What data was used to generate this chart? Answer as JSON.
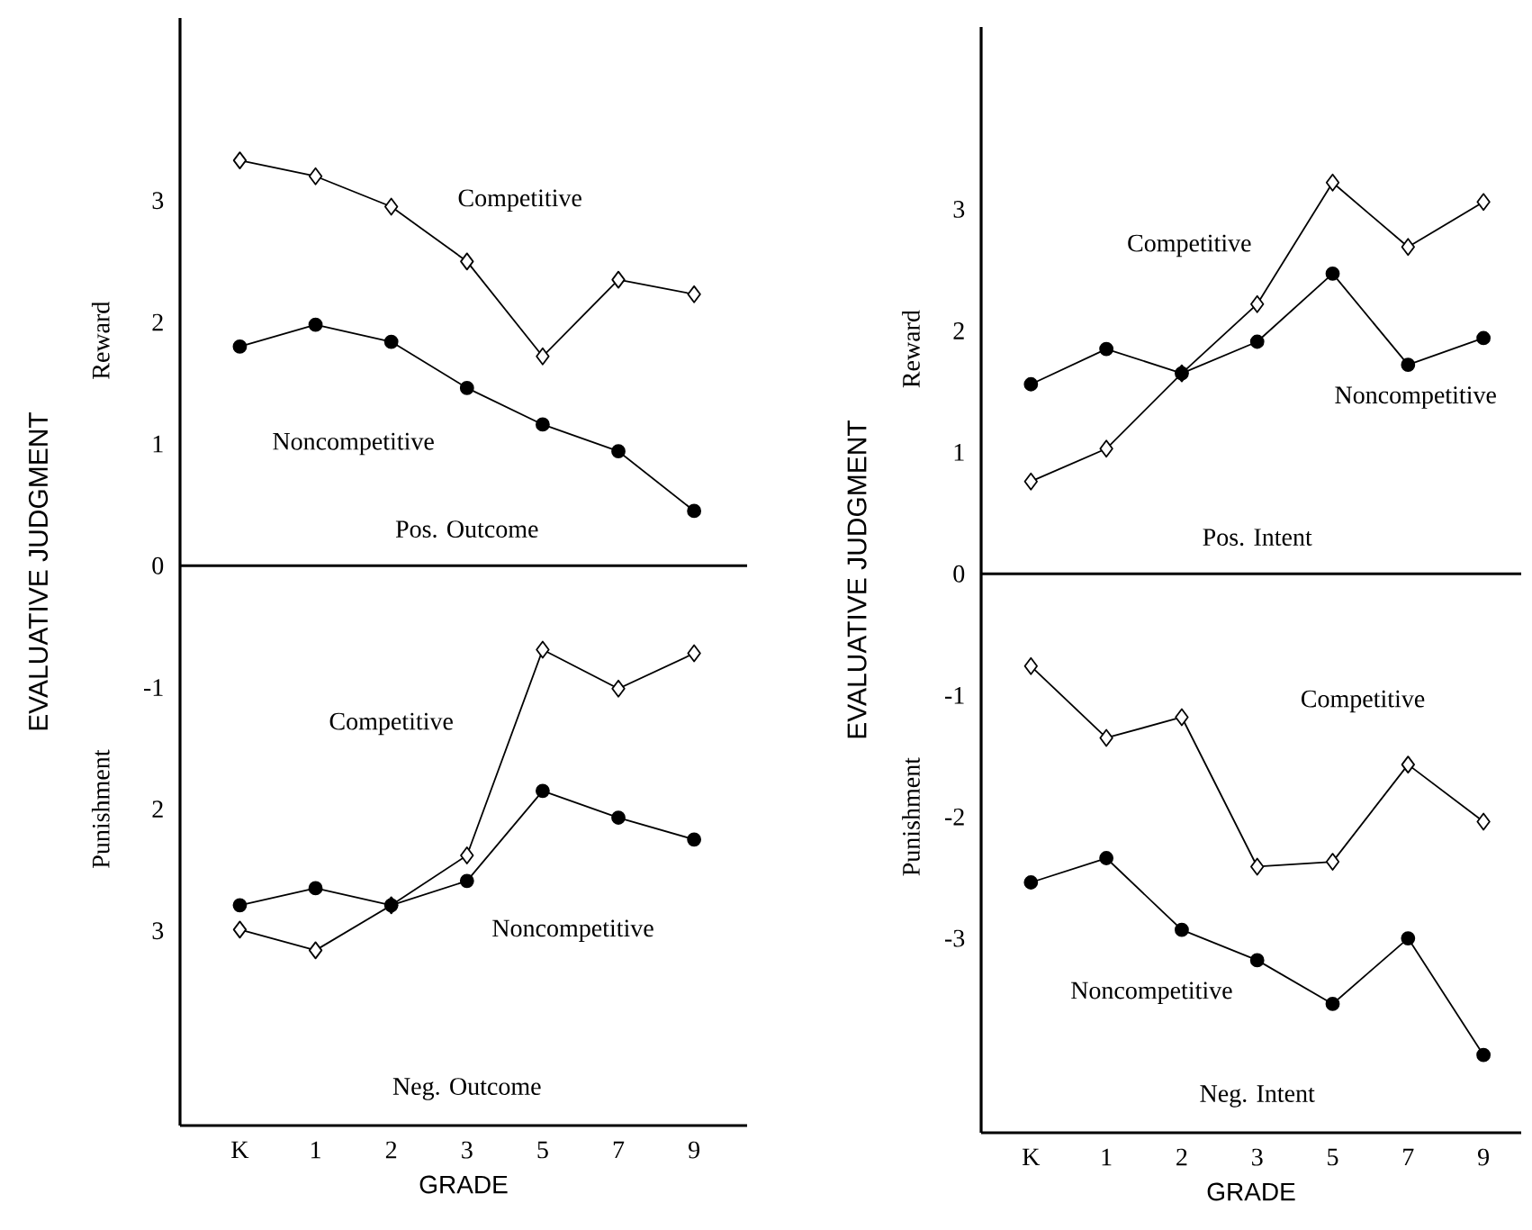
{
  "chart_data": [
    {
      "type": "line",
      "ylabel": "EVALUATIVE JUDGMENT",
      "xlabel": "GRADE",
      "categories": [
        "K",
        "1",
        "2",
        "3",
        "5",
        "7",
        "9"
      ],
      "series": [
        {
          "name": "Competitive",
          "color": "#000000",
          "marker": "diamond",
          "values": [
            3.33,
            3.2,
            2.95,
            2.5,
            1.72,
            2.35,
            2.23
          ]
        },
        {
          "name": "Noncompetitive",
          "color": "#000000",
          "marker": "circle",
          "values": [
            1.8,
            1.98,
            1.84,
            1.46,
            1.16,
            0.94,
            0.45
          ]
        },
        {
          "name": "Competitive",
          "color": "#000000",
          "marker": "diamond",
          "values": [
            -2.99,
            -3.16,
            -2.79,
            -2.38,
            -0.69,
            -1.01,
            -0.72
          ]
        },
        {
          "name": "Noncompetitive",
          "color": "#000000",
          "marker": "circle",
          "values": [
            -2.79,
            -2.65,
            -2.79,
            -2.59,
            -1.85,
            -2.07,
            -2.25
          ]
        }
      ],
      "ylim": [
        -4.6,
        4.5
      ],
      "yticks": [
        3,
        2,
        1,
        0,
        -1,
        {
          "value": -2,
          "label": "2"
        },
        {
          "value": -3,
          "label": "3"
        }
      ],
      "ref_lines": [
        {
          "axis": "y",
          "value": 0
        }
      ],
      "annotations": [
        "Reward",
        "Punishment",
        "Pos. Outcome",
        "Neg. Outcome"
      ]
    },
    {
      "type": "line",
      "ylabel": "EVALUATIVE JUDGMENT",
      "xlabel": "GRADE",
      "categories": [
        "K",
        "1",
        "2",
        "3",
        "5",
        "7",
        "9"
      ],
      "series": [
        {
          "name": "Competitive",
          "color": "#000000",
          "marker": "diamond",
          "values": [
            0.76,
            1.03,
            1.65,
            2.22,
            3.22,
            2.69,
            3.06
          ]
        },
        {
          "name": "Noncompetitive",
          "color": "#000000",
          "marker": "circle",
          "values": [
            1.56,
            1.85,
            1.65,
            1.91,
            2.47,
            1.72,
            1.94
          ]
        },
        {
          "name": "Competitive",
          "color": "#000000",
          "marker": "diamond",
          "values": [
            -0.76,
            -1.35,
            -1.18,
            -2.41,
            -2.37,
            -1.57,
            -2.04
          ]
        },
        {
          "name": "Noncompetitive",
          "color": "#000000",
          "marker": "circle",
          "values": [
            -2.54,
            -2.34,
            -2.93,
            -3.18,
            -3.54,
            -3.0,
            -3.96
          ]
        }
      ],
      "ylim": [
        -4.6,
        4.5
      ],
      "yticks": [
        3,
        2,
        1,
        0,
        -1,
        -2,
        -3
      ],
      "ref_lines": [
        {
          "axis": "y",
          "value": 0
        }
      ],
      "annotations": [
        "Reward",
        "Punishment",
        "Pos. Intent",
        "Neg. Intent"
      ]
    }
  ]
}
